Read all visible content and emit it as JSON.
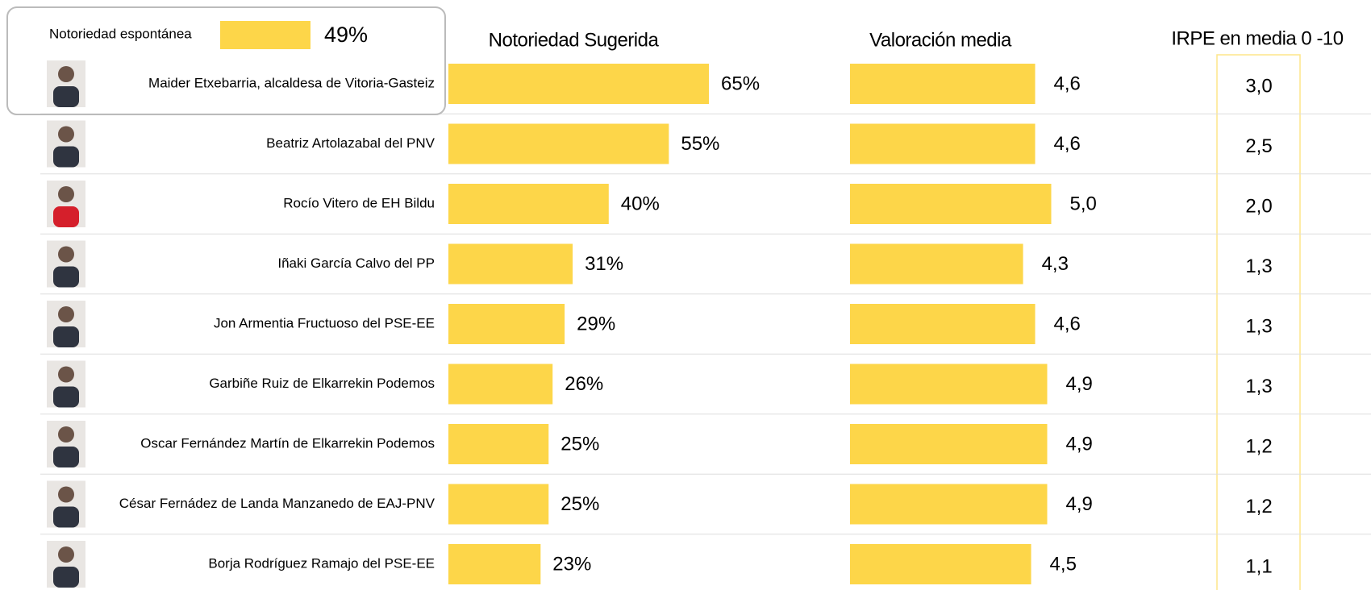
{
  "legend": {
    "label": "Notoriedad espontánea",
    "value": "49%"
  },
  "columns": [
    "Notoriedad Sugerida",
    "Valoración  media",
    "IRPE en media 0 -10"
  ],
  "color": "#fdd649",
  "rows": [
    {
      "name": "Maider Etxebarria, alcaldesa de Vitoria-Gasteiz",
      "sugerida": 65,
      "sugerida_label": "65%",
      "valoracion": 4.6,
      "valoracion_label": "4,6",
      "irpe": "3,0"
    },
    {
      "name": "Beatriz Artolazabal del PNV",
      "sugerida": 55,
      "sugerida_label": "55%",
      "valoracion": 4.6,
      "valoracion_label": "4,6",
      "irpe": "2,5"
    },
    {
      "name": "Rocío Vitero de EH Bildu",
      "sugerida": 40,
      "sugerida_label": "40%",
      "valoracion": 5.0,
      "valoracion_label": "5,0",
      "irpe": "2,0"
    },
    {
      "name": "Iñaki García Calvo del PP",
      "sugerida": 31,
      "sugerida_label": "31%",
      "valoracion": 4.3,
      "valoracion_label": "4,3",
      "irpe": "1,3"
    },
    {
      "name": "Jon Armentia Fructuoso del PSE-EE",
      "sugerida": 29,
      "sugerida_label": "29%",
      "valoracion": 4.6,
      "valoracion_label": "4,6",
      "irpe": "1,3"
    },
    {
      "name": "Garbiñe Ruiz de Elkarrekin Podemos",
      "sugerida": 26,
      "sugerida_label": "26%",
      "valoracion": 4.9,
      "valoracion_label": "4,9",
      "irpe": "1,3"
    },
    {
      "name": "Oscar Fernández Martín de Elkarrekin Podemos",
      "sugerida": 25,
      "sugerida_label": "25%",
      "valoracion": 4.9,
      "valoracion_label": "4,9",
      "irpe": "1,2"
    },
    {
      "name": "César Fernádez de Landa Manzanedo de EAJ-PNV",
      "sugerida": 25,
      "sugerida_label": "25%",
      "valoracion": 4.9,
      "valoracion_label": "4,9",
      "irpe": "1,2"
    },
    {
      "name": "Borja Rodríguez Ramajo del PSE-EE",
      "sugerida": 23,
      "sugerida_label": "23%",
      "valoracion": 4.5,
      "valoracion_label": "4,5",
      "irpe": "1,1"
    }
  ]
}
